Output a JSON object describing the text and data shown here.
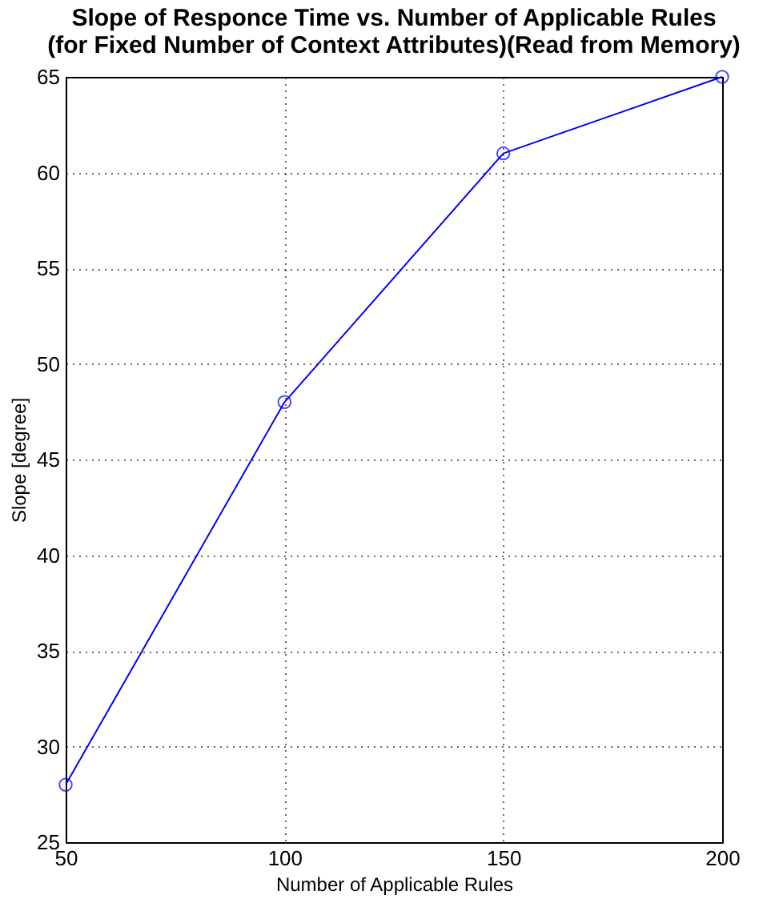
{
  "chart_data": {
    "type": "line",
    "title": [
      "Slope of Responce Time vs. Number of Applicable Rules",
      "(for Fixed Number of Context Attributes)(Read from Memory)"
    ],
    "xlabel": "Number of Applicable Rules",
    "ylabel": "Slope [degree]",
    "x": [
      50,
      100,
      150,
      200
    ],
    "series": [
      {
        "color": "#0000ff",
        "values": [
          28,
          48,
          61,
          65
        ]
      }
    ],
    "xlim": [
      50,
      200
    ],
    "xticks": [
      50,
      100,
      150,
      200
    ],
    "ylim": [
      25,
      65
    ],
    "yticks": [
      25,
      30,
      35,
      40,
      45,
      50,
      55,
      60,
      65
    ],
    "grid": true,
    "marker": "circle",
    "line_style": "solid"
  }
}
